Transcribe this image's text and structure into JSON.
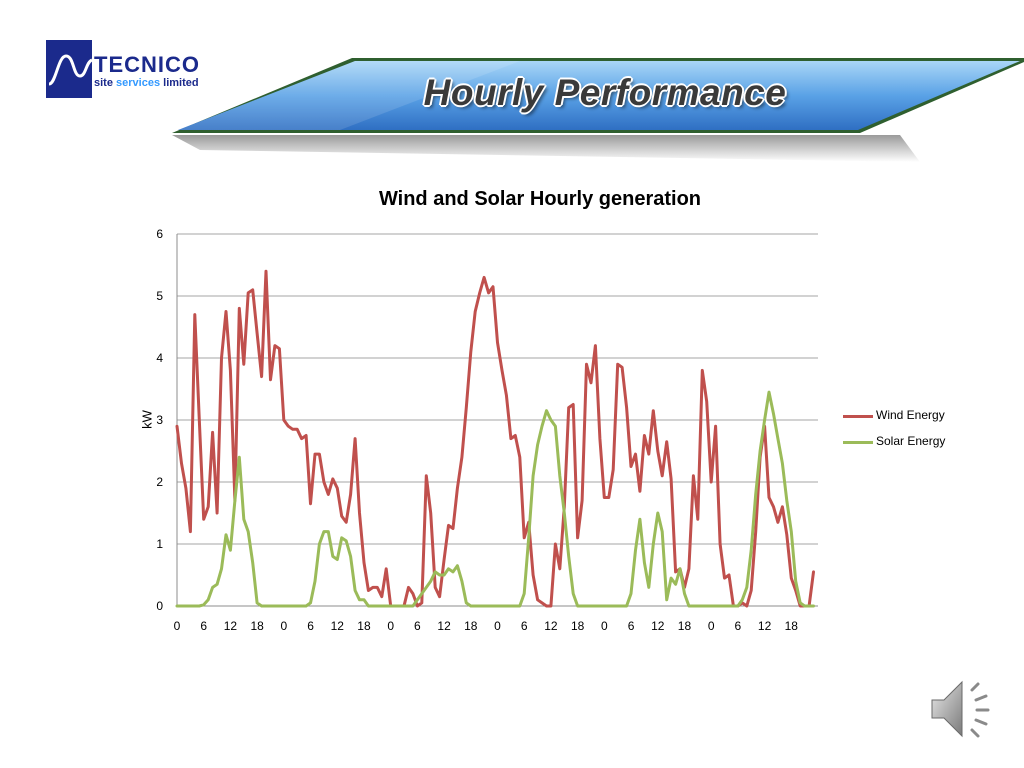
{
  "slide": {
    "title": "Hourly Performance",
    "logo": {
      "name": "TECNICO",
      "sub1": "site",
      "sub2": "services",
      "sub3": "limited"
    },
    "audio_icon": "speaker-icon"
  },
  "colors": {
    "wind": "#c0504d",
    "solar": "#9bbb59",
    "banner_top": "#9fd0f5",
    "banner_bottom": "#3a78c8",
    "banner_border": "#2f5f2f"
  },
  "chart_data": {
    "type": "line",
    "title": "Wind and Solar Hourly generation",
    "xlabel": "",
    "ylabel": "kW",
    "ylim": [
      0,
      6
    ],
    "yticks": [
      0,
      1,
      2,
      3,
      4,
      5,
      6
    ],
    "xticks": [
      "0",
      "6",
      "12",
      "18",
      "0",
      "6",
      "12",
      "18",
      "0",
      "6",
      "12",
      "18",
      "0",
      "6",
      "12",
      "18",
      "0",
      "6",
      "12",
      "18",
      "0",
      "6",
      "12",
      "18"
    ],
    "grid": true,
    "legend_position": "right",
    "x_count": 144,
    "series": [
      {
        "name": "Wind Energy",
        "color": "#c0504d",
        "values": [
          2.9,
          2.3,
          1.9,
          1.2,
          4.7,
          3.0,
          1.4,
          1.6,
          2.8,
          1.5,
          4.0,
          4.75,
          3.8,
          1.7,
          4.8,
          3.9,
          5.05,
          5.1,
          4.4,
          3.7,
          5.4,
          3.65,
          4.2,
          4.15,
          3.0,
          2.9,
          2.85,
          2.85,
          2.7,
          2.75,
          1.65,
          2.45,
          2.45,
          2.0,
          1.8,
          2.05,
          1.9,
          1.45,
          1.35,
          1.8,
          2.7,
          1.5,
          0.7,
          0.25,
          0.3,
          0.3,
          0.15,
          0.6,
          0.0,
          0.0,
          0.0,
          0.0,
          0.3,
          0.2,
          0.0,
          0.05,
          2.1,
          1.5,
          0.3,
          0.15,
          0.75,
          1.3,
          1.25,
          1.9,
          2.4,
          3.2,
          4.1,
          4.75,
          5.05,
          5.3,
          5.05,
          5.15,
          4.25,
          3.8,
          3.4,
          2.7,
          2.75,
          2.4,
          1.1,
          1.35,
          0.5,
          0.1,
          0.05,
          0.0,
          0.0,
          1.0,
          0.6,
          1.6,
          3.2,
          3.25,
          1.1,
          1.7,
          3.9,
          3.6,
          4.2,
          2.7,
          1.75,
          1.75,
          2.2,
          3.9,
          3.85,
          3.2,
          2.25,
          2.45,
          1.85,
          2.75,
          2.45,
          3.15,
          2.5,
          2.1,
          2.65,
          2.05,
          0.55,
          0.6,
          0.3,
          0.6,
          2.1,
          1.4,
          3.8,
          3.3,
          2.0,
          2.9,
          1.0,
          0.45,
          0.5,
          0.0,
          0.0,
          0.05,
          0.0,
          0.25,
          1.2,
          2.4,
          2.9,
          1.75,
          1.6,
          1.35,
          1.6,
          1.15,
          0.45,
          0.25,
          0.0,
          0.0,
          0.0,
          0.55
        ]
      },
      {
        "name": "Solar Energy",
        "color": "#9bbb59",
        "values": [
          0,
          0,
          0,
          0,
          0,
          0,
          0.02,
          0.1,
          0.3,
          0.35,
          0.6,
          1.15,
          0.9,
          1.7,
          2.4,
          1.4,
          1.2,
          0.7,
          0.05,
          0,
          0,
          0,
          0,
          0,
          0,
          0,
          0,
          0,
          0,
          0,
          0.05,
          0.4,
          1.0,
          1.2,
          1.2,
          0.8,
          0.75,
          1.1,
          1.05,
          0.8,
          0.25,
          0.1,
          0.1,
          0,
          0,
          0,
          0,
          0,
          0,
          0,
          0,
          0,
          0,
          0,
          0.1,
          0.2,
          0.3,
          0.4,
          0.55,
          0.5,
          0.5,
          0.6,
          0.55,
          0.65,
          0.4,
          0.05,
          0,
          0,
          0,
          0,
          0,
          0,
          0,
          0,
          0,
          0,
          0,
          0,
          0.2,
          1.1,
          2.1,
          2.6,
          2.9,
          3.15,
          3.0,
          2.9,
          2.1,
          1.5,
          0.8,
          0.2,
          0,
          0,
          0,
          0,
          0,
          0,
          0,
          0,
          0,
          0,
          0,
          0,
          0.2,
          0.9,
          1.4,
          0.7,
          0.3,
          1.0,
          1.5,
          1.2,
          0.1,
          0.45,
          0.35,
          0.6,
          0.2,
          0,
          0,
          0,
          0,
          0,
          0,
          0,
          0,
          0,
          0,
          0,
          0,
          0.1,
          0.3,
          0.9,
          1.8,
          2.5,
          3.0,
          3.45,
          3.1,
          2.7,
          2.3,
          1.7,
          1.2,
          0.4,
          0.05,
          0,
          0,
          0
        ]
      }
    ]
  }
}
